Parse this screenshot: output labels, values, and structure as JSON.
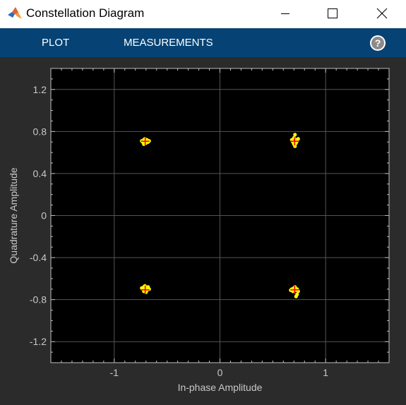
{
  "window": {
    "title": "Constellation Diagram",
    "icons": {
      "app": "matlab-logo-icon",
      "minimize": "minimize-icon",
      "maximize": "maximize-icon",
      "close": "close-icon"
    }
  },
  "toolstrip": {
    "tabs": [
      {
        "label": "PLOT"
      },
      {
        "label": "MEASUREMENTS"
      }
    ],
    "help_icon": "help-icon",
    "background": "#064374"
  },
  "chart_data": {
    "type": "scatter",
    "xlabel": "In-phase Amplitude",
    "ylabel": "Quadrature Amplitude",
    "xlim": [
      -1.6,
      1.6
    ],
    "ylim": [
      -1.4,
      1.4
    ],
    "xticks": [
      -1,
      0,
      1
    ],
    "xtick_labels": [
      "-1",
      "0",
      "1"
    ],
    "yticks": [
      1.2,
      0.8,
      0.4,
      0,
      -0.4,
      -0.8,
      -1.2
    ],
    "ytick_labels": [
      "1.2",
      "0.8",
      "0.4",
      "0",
      "-0.4",
      "-0.8",
      "-1.2"
    ],
    "grid": true,
    "colors": {
      "background": "#000000",
      "points": "#ffff00",
      "reference": "#ff0000",
      "grid": "#555555"
    },
    "reference_points": [
      {
        "x": -0.707,
        "y": 0.707
      },
      {
        "x": 0.707,
        "y": 0.707
      },
      {
        "x": -0.707,
        "y": -0.707
      },
      {
        "x": 0.707,
        "y": -0.707
      }
    ],
    "points": [
      {
        "x": -0.72,
        "y": 0.72
      },
      {
        "x": -0.7,
        "y": 0.71
      },
      {
        "x": -0.68,
        "y": 0.7
      },
      {
        "x": -0.73,
        "y": 0.7
      },
      {
        "x": -0.71,
        "y": 0.73
      },
      {
        "x": -0.69,
        "y": 0.72
      },
      {
        "x": -0.74,
        "y": 0.71
      },
      {
        "x": -0.7,
        "y": 0.69
      },
      {
        "x": -0.67,
        "y": 0.71
      },
      {
        "x": -0.72,
        "y": 0.68
      },
      {
        "x": 0.71,
        "y": 0.77
      },
      {
        "x": 0.7,
        "y": 0.74
      },
      {
        "x": 0.72,
        "y": 0.72
      },
      {
        "x": 0.69,
        "y": 0.7
      },
      {
        "x": 0.73,
        "y": 0.71
      },
      {
        "x": 0.7,
        "y": 0.68
      },
      {
        "x": 0.72,
        "y": 0.69
      },
      {
        "x": 0.68,
        "y": 0.72
      },
      {
        "x": 0.71,
        "y": 0.66
      },
      {
        "x": 0.74,
        "y": 0.73
      },
      {
        "x": -0.73,
        "y": -0.7
      },
      {
        "x": -0.7,
        "y": -0.69
      },
      {
        "x": -0.68,
        "y": -0.68
      },
      {
        "x": -0.72,
        "y": -0.72
      },
      {
        "x": -0.69,
        "y": -0.71
      },
      {
        "x": -0.74,
        "y": -0.69
      },
      {
        "x": -0.71,
        "y": -0.67
      },
      {
        "x": -0.7,
        "y": -0.73
      },
      {
        "x": -0.67,
        "y": -0.7
      },
      {
        "x": -0.72,
        "y": -0.68
      },
      {
        "x": 0.68,
        "y": -0.7
      },
      {
        "x": 0.7,
        "y": -0.69
      },
      {
        "x": 0.72,
        "y": -0.71
      },
      {
        "x": 0.71,
        "y": -0.68
      },
      {
        "x": 0.74,
        "y": -0.72
      },
      {
        "x": 0.69,
        "y": -0.72
      },
      {
        "x": 0.73,
        "y": -0.7
      },
      {
        "x": 0.67,
        "y": -0.71
      },
      {
        "x": 0.73,
        "y": -0.75
      },
      {
        "x": 0.72,
        "y": -0.77
      }
    ]
  }
}
